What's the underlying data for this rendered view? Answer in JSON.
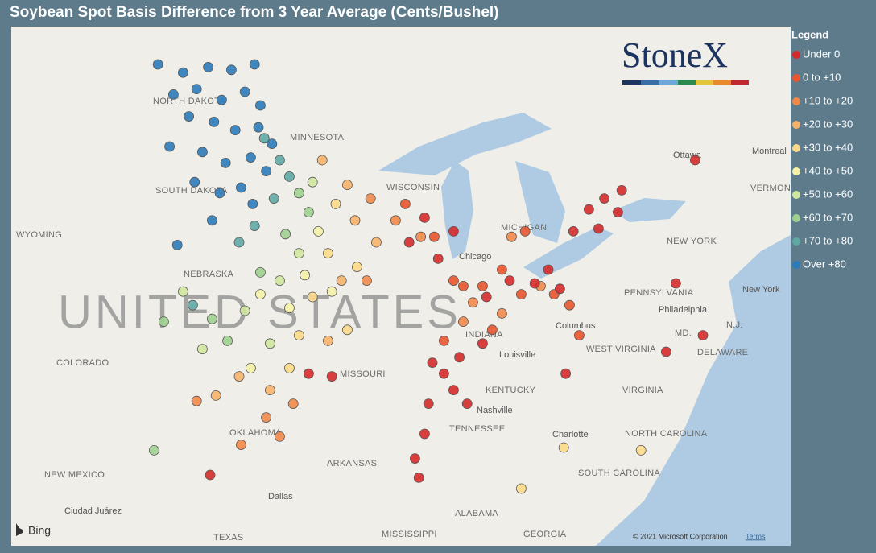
{
  "title": "Soybean Spot Basis Difference from 3 Year Average (Cents/Bushel)",
  "legend": {
    "title": "Legend",
    "items": [
      {
        "name": "Under 0",
        "color": "#d42a2a"
      },
      {
        "name": "0 to +10",
        "color": "#e8552f"
      },
      {
        "name": "+10 to +20",
        "color": "#f08a4b"
      },
      {
        "name": "+20 to +30",
        "color": "#f6b26b"
      },
      {
        "name": "+30 to +40",
        "color": "#fbd98a"
      },
      {
        "name": "+40 to +50",
        "color": "#f5f2a8"
      },
      {
        "name": "+50 to +60",
        "color": "#cfe6a0"
      },
      {
        "name": "+60 to +70",
        "color": "#9fd08f"
      },
      {
        "name": "+70 to +80",
        "color": "#5fa8a4"
      },
      {
        "name": "Over +80",
        "color": "#2b7bb9"
      }
    ]
  },
  "logo": "StoneX",
  "map": {
    "country": "UNITED STATES",
    "labels": [
      "NORTH DAKOTA",
      "MINNESOTA",
      "SOUTH DAKOTA",
      "WYOMING",
      "NEBRASKA",
      "COLORADO",
      "MISSOURI",
      "KENTUCKY",
      "TENNESSEE",
      "ARKANSAS",
      "OKLAHOMA",
      "NEW MEXICO",
      "TEXAS",
      "MISSISSIPPI",
      "ALABAMA",
      "GEORGIA",
      "SOUTH CAROLINA",
      "NORTH CAROLINA",
      "VIRGINIA",
      "WEST VIRGINIA",
      "PENNSYLVANIA",
      "NEW YORK",
      "WISCONSIN",
      "MICHIGAN",
      "INDIANA",
      "DELAWARE",
      "MD.",
      "N.J.",
      "VERMONT",
      "Chicago",
      "Columbus",
      "Louisville",
      "Nashville",
      "Charlotte",
      "Dallas",
      "Ciudad Juárez",
      "Ottawa",
      "Montreal",
      "Philadelphia",
      "New York"
    ],
    "provider": "Bing",
    "copyright": "© 2021 Microsoft Corporation",
    "terms": "Terms",
    "points": [
      [
        -103.8,
        48.9,
        9
      ],
      [
        -102.5,
        48.6,
        9
      ],
      [
        -101.2,
        48.8,
        9
      ],
      [
        -100.0,
        48.7,
        9
      ],
      [
        -98.8,
        48.9,
        9
      ],
      [
        -103.0,
        47.8,
        9
      ],
      [
        -101.8,
        48.0,
        9
      ],
      [
        -100.5,
        47.6,
        9
      ],
      [
        -99.3,
        47.9,
        9
      ],
      [
        -98.5,
        47.4,
        9
      ],
      [
        -102.2,
        47.0,
        9
      ],
      [
        -100.9,
        46.8,
        9
      ],
      [
        -99.8,
        46.5,
        9
      ],
      [
        -98.6,
        46.6,
        9
      ],
      [
        -97.9,
        46.0,
        9
      ],
      [
        -103.2,
        45.9,
        9
      ],
      [
        -101.5,
        45.7,
        9
      ],
      [
        -100.3,
        45.3,
        9
      ],
      [
        -99.0,
        45.5,
        9
      ],
      [
        -98.2,
        45.0,
        9
      ],
      [
        -101.9,
        44.6,
        9
      ],
      [
        -100.6,
        44.2,
        9
      ],
      [
        -99.5,
        44.4,
        9
      ],
      [
        -98.9,
        43.8,
        9
      ],
      [
        -101.0,
        43.2,
        9
      ],
      [
        -102.8,
        42.3,
        9
      ],
      [
        -97.5,
        45.4,
        8
      ],
      [
        -97.0,
        44.8,
        8
      ],
      [
        -97.8,
        44.0,
        8
      ],
      [
        -98.8,
        43.0,
        8
      ],
      [
        -99.6,
        42.4,
        8
      ],
      [
        -102.0,
        40.1,
        8
      ],
      [
        -98.3,
        46.2,
        8
      ],
      [
        -96.5,
        44.2,
        7
      ],
      [
        -96.0,
        43.5,
        7
      ],
      [
        -97.2,
        42.7,
        7
      ],
      [
        -98.5,
        41.3,
        7
      ],
      [
        -101.0,
        39.6,
        7
      ],
      [
        -100.2,
        38.8,
        7
      ],
      [
        -103.5,
        39.5,
        7
      ],
      [
        -104.0,
        34.8,
        7
      ],
      [
        -95.8,
        44.6,
        6
      ],
      [
        -96.5,
        42.0,
        6
      ],
      [
        -97.5,
        41.0,
        6
      ],
      [
        -99.3,
        39.9,
        6
      ],
      [
        -98.0,
        38.7,
        6
      ],
      [
        -102.5,
        40.6,
        6
      ],
      [
        -101.5,
        38.5,
        6
      ],
      [
        -95.5,
        42.8,
        5
      ],
      [
        -96.2,
        41.2,
        5
      ],
      [
        -97.0,
        40.0,
        5
      ],
      [
        -98.5,
        40.5,
        5
      ],
      [
        -99.0,
        37.8,
        5
      ],
      [
        -94.8,
        40.6,
        5
      ],
      [
        -94.6,
        43.8,
        4
      ],
      [
        -95.0,
        42.0,
        4
      ],
      [
        -95.8,
        40.4,
        4
      ],
      [
        -96.5,
        39.0,
        4
      ],
      [
        -93.5,
        41.5,
        4
      ],
      [
        -94.0,
        39.2,
        4
      ],
      [
        -97.0,
        37.8,
        4
      ],
      [
        -82.8,
        34.9,
        4
      ],
      [
        -78.8,
        34.8,
        4
      ],
      [
        -85.0,
        33.4,
        4
      ],
      [
        -94.0,
        44.5,
        3
      ],
      [
        -93.6,
        43.2,
        3
      ],
      [
        -94.3,
        41.0,
        3
      ],
      [
        -92.5,
        42.4,
        3
      ],
      [
        -95.0,
        38.8,
        3
      ],
      [
        -98.0,
        37.0,
        3
      ],
      [
        -99.6,
        37.5,
        3
      ],
      [
        -100.8,
        36.8,
        3
      ],
      [
        -95.3,
        45.4,
        3
      ],
      [
        -92.8,
        44.0,
        2
      ],
      [
        -93.0,
        41.0,
        2
      ],
      [
        -91.5,
        43.2,
        2
      ],
      [
        -98.2,
        36.0,
        2
      ],
      [
        -97.5,
        35.3,
        2
      ],
      [
        -96.8,
        36.5,
        2
      ],
      [
        -99.5,
        35.0,
        2
      ],
      [
        -87.5,
        40.2,
        2
      ],
      [
        -86.0,
        39.8,
        2
      ],
      [
        -88.0,
        39.5,
        2
      ],
      [
        -101.8,
        36.6,
        2
      ],
      [
        -90.2,
        42.6,
        2
      ],
      [
        -85.5,
        42.6,
        2
      ],
      [
        -84.0,
        40.8,
        2
      ],
      [
        -91.0,
        43.8,
        1
      ],
      [
        -89.5,
        42.6,
        1
      ],
      [
        -88.5,
        41.0,
        1
      ],
      [
        -87.0,
        40.8,
        1
      ],
      [
        -86.5,
        39.2,
        1
      ],
      [
        -85.0,
        40.5,
        1
      ],
      [
        -83.3,
        40.5,
        1
      ],
      [
        -82.5,
        40.1,
        1
      ],
      [
        -84.8,
        42.8,
        1
      ],
      [
        -89.0,
        38.8,
        1
      ],
      [
        -86.0,
        41.4,
        1
      ],
      [
        -88.0,
        40.8,
        1
      ],
      [
        -82.0,
        39.0,
        1
      ],
      [
        -90.8,
        42.4,
        0
      ],
      [
        -90.0,
        43.3,
        0
      ],
      [
        -89.3,
        41.8,
        0
      ],
      [
        -88.5,
        42.8,
        0
      ],
      [
        -86.8,
        40.4,
        0
      ],
      [
        -85.6,
        41.0,
        0
      ],
      [
        -84.3,
        40.9,
        0
      ],
      [
        -83.6,
        41.4,
        0
      ],
      [
        -83.0,
        40.7,
        0
      ],
      [
        -82.3,
        42.8,
        0
      ],
      [
        -81.5,
        43.6,
        0
      ],
      [
        -80.7,
        44.0,
        0
      ],
      [
        -80.0,
        43.5,
        0
      ],
      [
        -79.8,
        44.3,
        0
      ],
      [
        -81.0,
        42.9,
        0
      ],
      [
        -89.6,
        38.0,
        0
      ],
      [
        -89.0,
        37.6,
        0
      ],
      [
        -88.2,
        38.2,
        0
      ],
      [
        -88.5,
        37.0,
        0
      ],
      [
        -89.8,
        36.5,
        0
      ],
      [
        -90.0,
        35.4,
        0
      ],
      [
        -90.5,
        34.5,
        0
      ],
      [
        -90.3,
        33.8,
        0
      ],
      [
        -87.0,
        38.7,
        0
      ],
      [
        -87.8,
        36.5,
        0
      ],
      [
        -96.0,
        37.6,
        0
      ],
      [
        -94.8,
        37.5,
        0
      ],
      [
        -77.0,
        40.9,
        0
      ],
      [
        -75.6,
        39.0,
        0
      ],
      [
        -77.5,
        38.4,
        0
      ],
      [
        -76.0,
        45.4,
        0
      ],
      [
        -101.1,
        33.9,
        0
      ],
      [
        -82.7,
        37.6,
        0
      ]
    ]
  }
}
